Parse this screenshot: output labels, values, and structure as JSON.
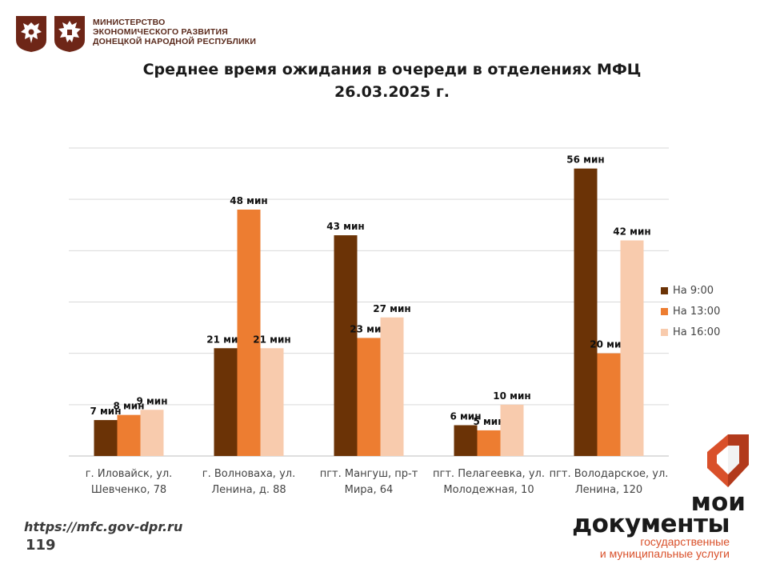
{
  "header": {
    "ministry_lines": [
      "МИНИСТЕРСТВО",
      "ЭКОНОМИЧЕСКОГО РАЗВИТИЯ",
      "ДОНЕЦКОЙ НАРОДНОЙ РЕСПУБЛИКИ"
    ],
    "emblems": [
      "russia-emblem-icon",
      "dpr-emblem-icon"
    ]
  },
  "chart_data": {
    "type": "bar",
    "title_lines": [
      "Среднее время ожидания в очереди в отделениях МФЦ",
      "26.03.2025 г."
    ],
    "categories": [
      [
        "г. Иловайск, ул.",
        "Шевченко, 78"
      ],
      [
        "г. Волноваха, ул.",
        "Ленина, д. 88"
      ],
      [
        "пгт. Мангуш, пр-т",
        "Мира, 64"
      ],
      [
        "пгт. Пелагеевка, ул.",
        "Молодежная, 10"
      ],
      [
        "пгт. Володарское, ул.",
        "Ленина, 120"
      ]
    ],
    "series": [
      {
        "name": "На 9:00",
        "color": "#6b3306",
        "values": [
          7,
          21,
          43,
          6,
          56
        ],
        "labels": [
          "7 мин",
          "21 мин",
          "43 мин",
          "6 мин",
          "56 мин"
        ]
      },
      {
        "name": "На 13:00",
        "color": "#ed7d31",
        "values": [
          8,
          48,
          23,
          5,
          20
        ],
        "labels": [
          "8 мин",
          "48 мин",
          "23 мин",
          "5 мин",
          "20 мин"
        ]
      },
      {
        "name": "На 16:00",
        "color": "#f8cbad",
        "values": [
          9,
          21,
          27,
          10,
          42
        ],
        "labels": [
          "9 мин",
          "21 мин",
          "27 мин",
          "10 мин",
          "42 мин"
        ]
      }
    ],
    "ylim": [
      0,
      60
    ],
    "grid": true,
    "legend_position": "right"
  },
  "footer": {
    "url": "https://mfc.gov-dpr.ru",
    "page_number": "119"
  },
  "brand": {
    "line1": "мои",
    "line2": "документы",
    "line3_lines": [
      "государственные",
      "и муниципальные услуги"
    ],
    "mark_icon": "mfc-logo-icon",
    "color": "#d9502a"
  }
}
